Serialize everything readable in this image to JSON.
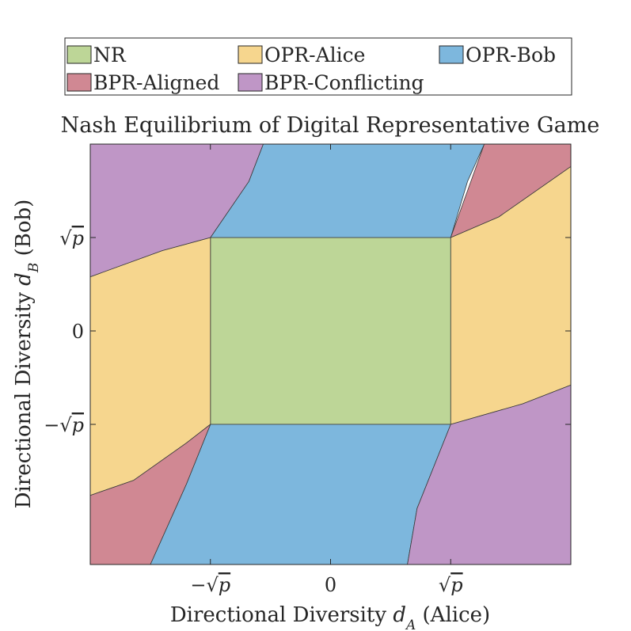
{
  "chart_data": {
    "type": "region-map",
    "title": "Nash Equilibrium of Digital Representative Game",
    "xlabel": {
      "text": "Directional Diversity ",
      "var": "d",
      "sub": "A",
      "suffix": " (Alice)"
    },
    "ylabel": {
      "text": "Directional Diversity ",
      "var": "d",
      "sub": "B",
      "suffix": " (Bob)"
    },
    "xlim": [
      -1.0,
      1.0
    ],
    "ylim": [
      -1.25,
      1.0
    ],
    "sqrt_p": 0.5,
    "xticks": [
      {
        "value": -0.5,
        "sign": "−",
        "root": "√",
        "sym": "p"
      },
      {
        "value": 0,
        "sign": "",
        "root": "",
        "sym": "0"
      },
      {
        "value": 0.5,
        "sign": "",
        "root": "√",
        "sym": "p"
      }
    ],
    "yticks": [
      {
        "value": 0.5,
        "sign": "",
        "root": "√",
        "sym": "p"
      },
      {
        "value": 0,
        "sign": "",
        "root": "",
        "sym": "0"
      },
      {
        "value": -0.5,
        "sign": "−",
        "root": "√",
        "sym": "p"
      }
    ],
    "legend": [
      {
        "name": "NR",
        "color": "#bdd697"
      },
      {
        "name": "OPR-Alice",
        "color": "#f6d68e"
      },
      {
        "name": "OPR-Bob",
        "color": "#7db7dd"
      },
      {
        "name": "BPR-Aligned",
        "color": "#d08893"
      },
      {
        "name": "BPR-Conflicting",
        "color": "#bf96c6"
      }
    ],
    "regions": [
      {
        "name": "NR",
        "color": "#bdd697",
        "points": [
          [
            -0.5,
            0.5
          ],
          [
            0.5,
            0.5
          ],
          [
            0.5,
            -0.5
          ],
          [
            -0.5,
            -0.5
          ]
        ]
      },
      {
        "name": "OPR-Alice",
        "color": "#f6d68e",
        "points": [
          [
            -0.5,
            0.5
          ],
          [
            -0.7,
            0.43
          ],
          [
            -1.0,
            0.29
          ],
          [
            -1.0,
            -0.88
          ],
          [
            -0.82,
            -0.8
          ],
          [
            -0.6,
            -0.6
          ],
          [
            -0.5,
            -0.5
          ]
        ]
      },
      {
        "name": "OPR-Alice",
        "color": "#f6d68e",
        "points": [
          [
            0.5,
            0.5
          ],
          [
            0.7,
            0.61
          ],
          [
            1.0,
            0.88
          ],
          [
            1.0,
            -0.29
          ],
          [
            0.8,
            -0.39
          ],
          [
            0.5,
            -0.5
          ]
        ]
      },
      {
        "name": "OPR-Bob",
        "color": "#7db7dd",
        "points": [
          [
            -0.5,
            0.5
          ],
          [
            0.5,
            0.5
          ],
          [
            0.57,
            0.8
          ],
          [
            0.64,
            1.0
          ],
          [
            -0.28,
            1.0
          ],
          [
            -0.34,
            0.8
          ],
          [
            -0.5,
            0.5
          ]
        ]
      },
      {
        "name": "OPR-Bob",
        "color": "#7db7dd",
        "points": [
          [
            -0.5,
            -0.5
          ],
          [
            0.5,
            -0.5
          ],
          [
            0.36,
            -0.95
          ],
          [
            0.32,
            -1.25
          ],
          [
            -0.75,
            -1.25
          ],
          [
            -0.6,
            -0.82
          ],
          [
            -0.5,
            -0.5
          ]
        ]
      },
      {
        "name": "BPR-Aligned",
        "color": "#d08893",
        "points": [
          [
            0.5,
            0.5
          ],
          [
            0.64,
            1.0
          ],
          [
            1.0,
            1.0
          ],
          [
            1.0,
            0.88
          ],
          [
            0.7,
            0.61
          ],
          [
            0.5,
            0.5
          ]
        ]
      },
      {
        "name": "BPR-Aligned",
        "color": "#d08893",
        "points": [
          [
            -0.5,
            -0.5
          ],
          [
            -0.6,
            -0.6
          ],
          [
            -0.82,
            -0.8
          ],
          [
            -1.0,
            -0.88
          ],
          [
            -1.0,
            -1.25
          ],
          [
            -0.75,
            -1.25
          ],
          [
            -0.6,
            -0.82
          ],
          [
            -0.5,
            -0.5
          ]
        ]
      },
      {
        "name": "BPR-Conflicting",
        "color": "#bf96c6",
        "points": [
          [
            -1.0,
            1.0
          ],
          [
            -0.28,
            1.0
          ],
          [
            -0.34,
            0.8
          ],
          [
            -0.5,
            0.5
          ],
          [
            -0.7,
            0.43
          ],
          [
            -1.0,
            0.29
          ]
        ]
      },
      {
        "name": "BPR-Conflicting",
        "color": "#bf96c6",
        "points": [
          [
            0.5,
            -0.5
          ],
          [
            0.8,
            -0.39
          ],
          [
            1.0,
            -0.29
          ],
          [
            1.0,
            -1.25
          ],
          [
            0.32,
            -1.25
          ],
          [
            0.36,
            -0.95
          ],
          [
            0.5,
            -0.5
          ]
        ]
      }
    ]
  }
}
